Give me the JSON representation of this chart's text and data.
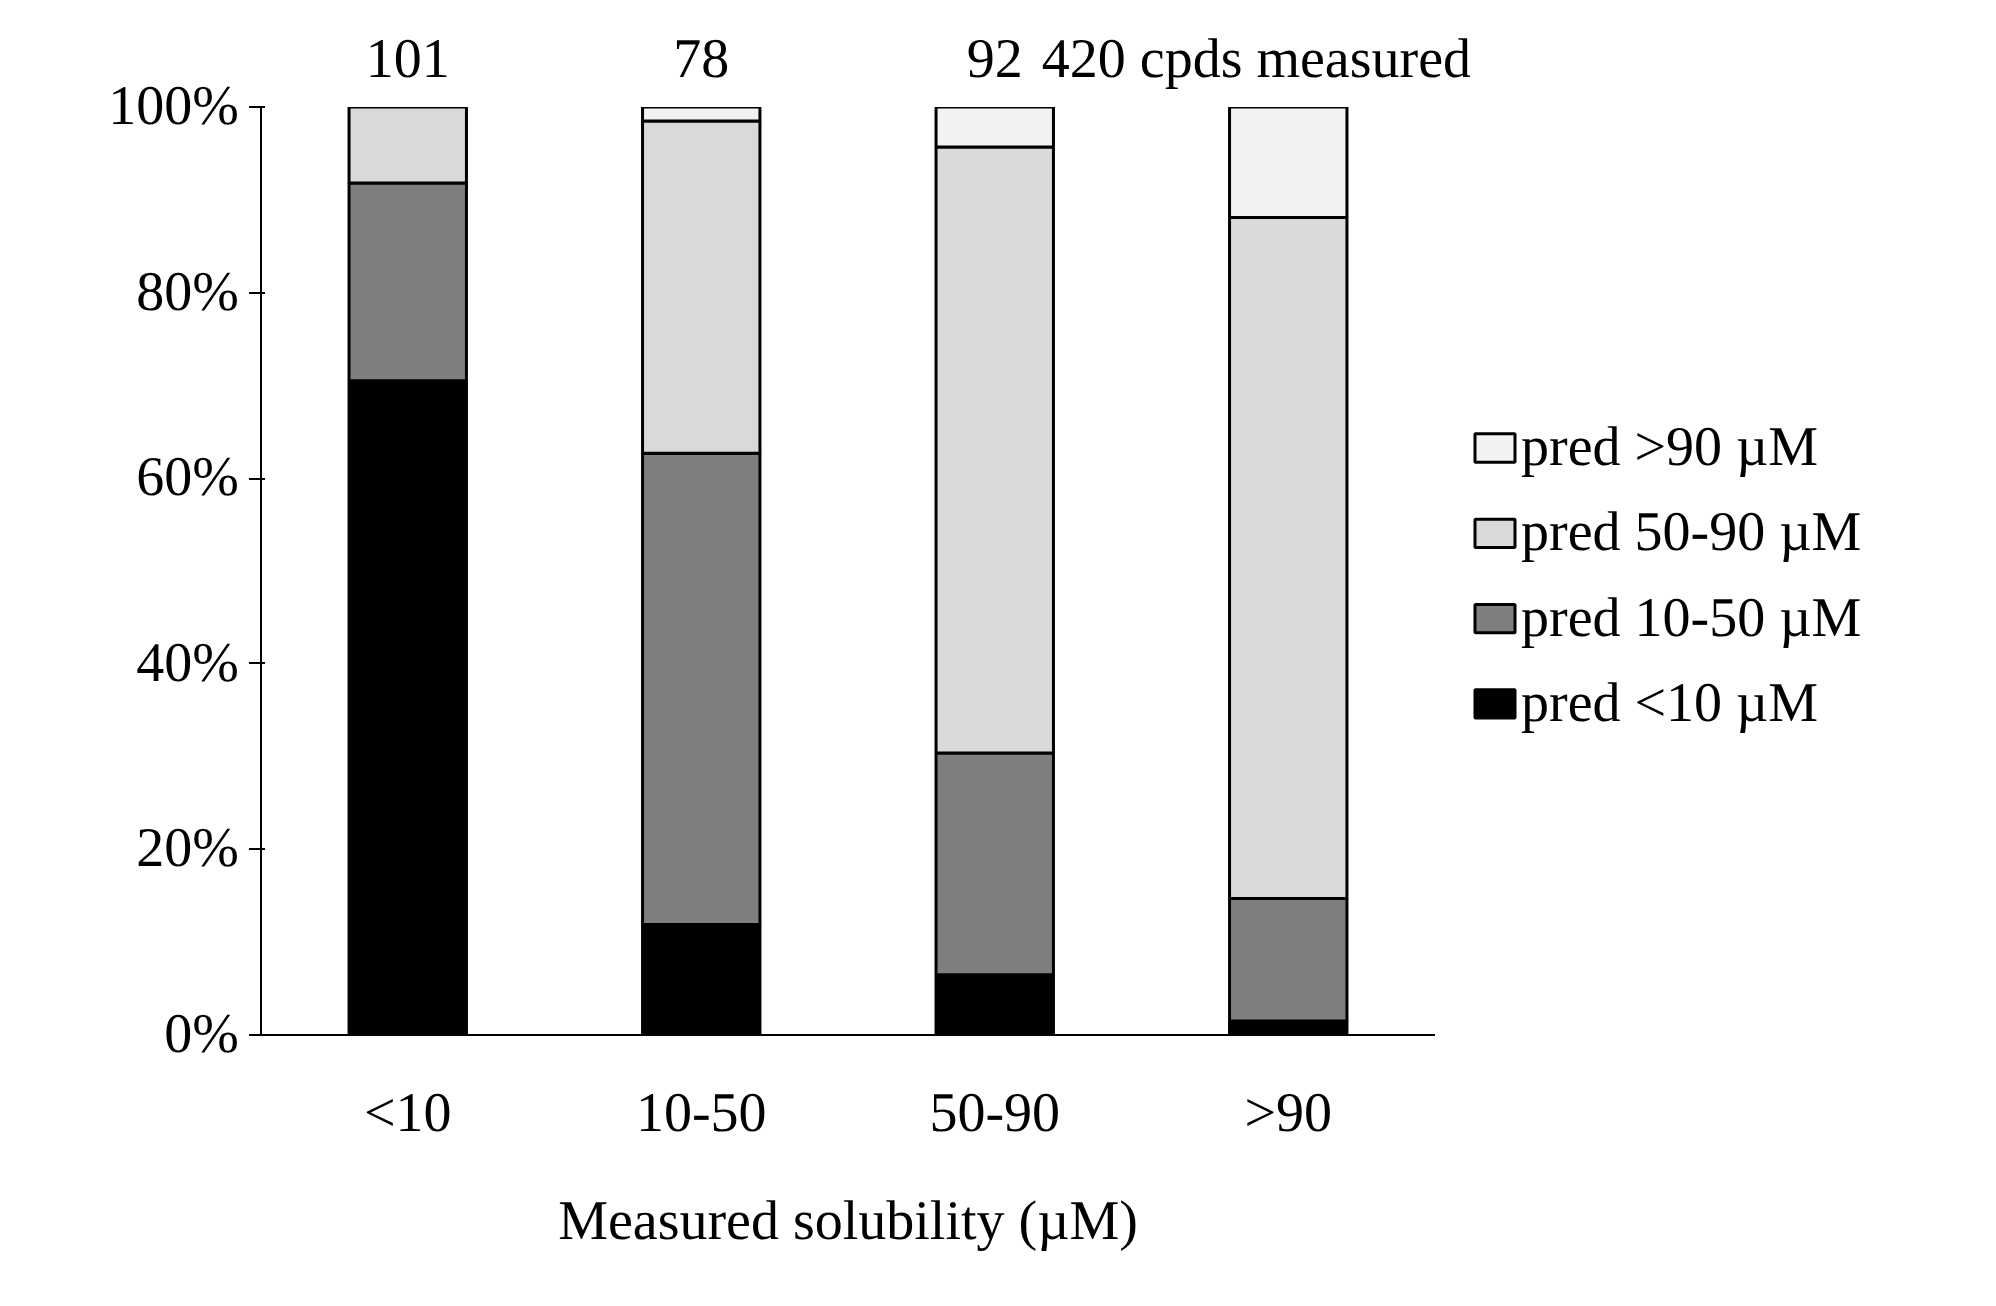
{
  "chart_data": {
    "type": "bar",
    "stacked": true,
    "xlabel": "Measured solubility (µM)",
    "categories": [
      "<10",
      "10-50",
      "50-90",
      ">90"
    ],
    "series": [
      {
        "name": "pred <10 µM",
        "color": "#000000",
        "values": [
          70.5,
          11.9,
          6.5,
          1.5
        ]
      },
      {
        "name": "pred 10-50 µM",
        "color": "#7f7f7f",
        "values": [
          21.3,
          50.8,
          23.9,
          13.2
        ]
      },
      {
        "name": "pred 50-90 µM",
        "color": "#d9d9d9",
        "values": [
          8.2,
          35.8,
          65.3,
          73.4
        ]
      },
      {
        "name": "pred >90 µM",
        "color": "#f2f2f2",
        "values": [
          0,
          1.5,
          4.3,
          11.9
        ]
      }
    ],
    "ylim": [
      0,
      100
    ],
    "yticks": [
      {
        "value": 0,
        "label": "0%"
      },
      {
        "value": 20,
        "label": "20%"
      },
      {
        "value": 40,
        "label": "40%"
      },
      {
        "value": 60,
        "label": "60%"
      },
      {
        "value": 80,
        "label": "80%"
      },
      {
        "value": 100,
        "label": "100%"
      }
    ],
    "annotations": [
      {
        "text": "101",
        "x": "<10",
        "y": 100
      },
      {
        "text": "78",
        "x": "10-50",
        "y": 100
      },
      {
        "text": "92",
        "x": "50-90",
        "y": 100
      },
      {
        "text": "420 cpds measured",
        "x": ">90",
        "y": 100
      }
    ],
    "legend": "right",
    "grid": false
  }
}
